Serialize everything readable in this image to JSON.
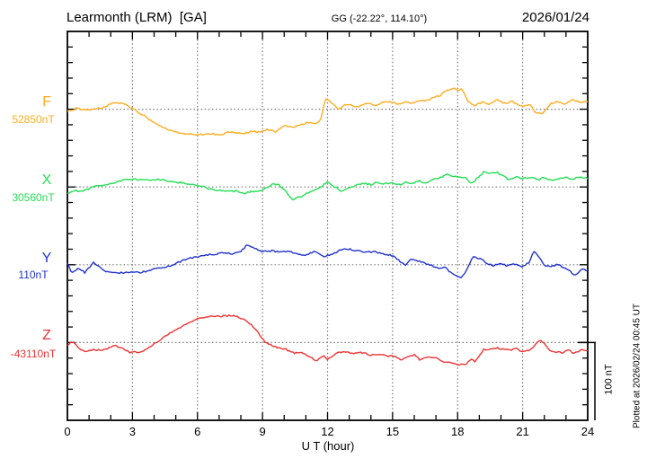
{
  "header": {
    "station_title": "Learmonth (LRM)  [GA]",
    "geographic_coords": "GG (-22.22°, 114.10°)",
    "date": "2026/01/24"
  },
  "axes": {
    "x_ticks": [
      "0",
      "3",
      "6",
      "9",
      "12",
      "15",
      "18",
      "21",
      "24"
    ],
    "x_label": "U T (hour)"
  },
  "scale_bar": {
    "label": "100 nT",
    "nT": 100
  },
  "watermark": "Plotted at 2026/02/24 00:45 UT",
  "colors": {
    "F": "#FFAD1F",
    "X": "#22DD55",
    "Y": "#2233CC",
    "Z": "#EE3333",
    "grid": "#777777",
    "axis": "#000000"
  },
  "chart_data": {
    "type": "line",
    "title": "Learmonth (LRM) [GA] magnetogram",
    "xlabel": "U T (hour)",
    "x_range": [
      0,
      24
    ],
    "x_major_tick_hours": 3,
    "x_minor_tick_hours": 1,
    "grid": "dotted at 3-hour intervals and at trace baselines",
    "trace_offset_per_division_nT": 100,
    "legend_position": "left labels per trace",
    "series": [
      {
        "name": "F",
        "baseline_label": "52850nT",
        "baseline_nT": 52850,
        "color": "#FFAD1F",
        "points_hour_offsetnT": [
          [
            0,
            -3
          ],
          [
            0.4,
            1
          ],
          [
            0.8,
            -1
          ],
          [
            1.2,
            0
          ],
          [
            1.6,
            2
          ],
          [
            2,
            7
          ],
          [
            2.3,
            9
          ],
          [
            2.7,
            6
          ],
          [
            3,
            1
          ],
          [
            3.4,
            -6
          ],
          [
            3.8,
            -14
          ],
          [
            4.3,
            -22
          ],
          [
            4.8,
            -28
          ],
          [
            5.3,
            -31
          ],
          [
            5.8,
            -32
          ],
          [
            6.3,
            -33
          ],
          [
            6.7,
            -31
          ],
          [
            7,
            -34
          ],
          [
            7.4,
            -29
          ],
          [
            7.8,
            -30
          ],
          [
            8.2,
            -31
          ],
          [
            8.5,
            -28
          ],
          [
            8.9,
            -30
          ],
          [
            9.2,
            -26
          ],
          [
            9.6,
            -29
          ],
          [
            10,
            -21
          ],
          [
            10.4,
            -23
          ],
          [
            10.8,
            -20
          ],
          [
            11.1,
            -17
          ],
          [
            11.4,
            -19
          ],
          [
            11.7,
            -13
          ],
          [
            11.9,
            14
          ],
          [
            12.1,
            10
          ],
          [
            12.5,
            0
          ],
          [
            12.9,
            7
          ],
          [
            13.3,
            2
          ],
          [
            13.8,
            8
          ],
          [
            14.2,
            5
          ],
          [
            14.6,
            9
          ],
          [
            15,
            9
          ],
          [
            15.3,
            6
          ],
          [
            15.6,
            10
          ],
          [
            15.9,
            7
          ],
          [
            16.2,
            12
          ],
          [
            16.5,
            10
          ],
          [
            16.9,
            15
          ],
          [
            17.2,
            18
          ],
          [
            17.5,
            24
          ],
          [
            17.8,
            27
          ],
          [
            18,
            25
          ],
          [
            18.2,
            26
          ],
          [
            18.5,
            9
          ],
          [
            18.8,
            5
          ],
          [
            19.2,
            10
          ],
          [
            19.5,
            6
          ],
          [
            19.8,
            13
          ],
          [
            20.2,
            7
          ],
          [
            20.5,
            10
          ],
          [
            21,
            3
          ],
          [
            21.3,
            7
          ],
          [
            21.6,
            -4
          ],
          [
            21.9,
            -6
          ],
          [
            22.3,
            7
          ],
          [
            22.6,
            10
          ],
          [
            23,
            6
          ],
          [
            23.3,
            13
          ],
          [
            23.6,
            9
          ],
          [
            24,
            10
          ]
        ]
      },
      {
        "name": "X",
        "baseline_label": "30560nT",
        "baseline_nT": 30560,
        "color": "#22DD55",
        "points_hour_offsetnT": [
          [
            0,
            -8
          ],
          [
            0.3,
            -4
          ],
          [
            0.6,
            -6
          ],
          [
            1,
            -2
          ],
          [
            1.4,
            2
          ],
          [
            1.8,
            3
          ],
          [
            2.2,
            6
          ],
          [
            2.6,
            9
          ],
          [
            3,
            10
          ],
          [
            3.4,
            10
          ],
          [
            3.8,
            9
          ],
          [
            4.2,
            10
          ],
          [
            4.6,
            8
          ],
          [
            5,
            6
          ],
          [
            5.4,
            5
          ],
          [
            5.8,
            3
          ],
          [
            6.2,
            1
          ],
          [
            6.6,
            -3
          ],
          [
            7,
            -4
          ],
          [
            7.4,
            -6
          ],
          [
            7.8,
            -5
          ],
          [
            8.2,
            -8
          ],
          [
            8.6,
            -5
          ],
          [
            9,
            -4
          ],
          [
            9.4,
            3
          ],
          [
            9.7,
            4
          ],
          [
            10,
            -4
          ],
          [
            10.4,
            -16
          ],
          [
            10.8,
            -12
          ],
          [
            11.2,
            -6
          ],
          [
            11.6,
            -1
          ],
          [
            12,
            6
          ],
          [
            12.3,
            1
          ],
          [
            12.6,
            -5
          ],
          [
            13,
            -1
          ],
          [
            13.4,
            3
          ],
          [
            13.7,
            5
          ],
          [
            14,
            3
          ],
          [
            14.3,
            6
          ],
          [
            14.6,
            4
          ],
          [
            15,
            5
          ],
          [
            15.3,
            3
          ],
          [
            15.6,
            6
          ],
          [
            15.9,
            4
          ],
          [
            16.2,
            8
          ],
          [
            16.5,
            5
          ],
          [
            16.9,
            10
          ],
          [
            17.2,
            12
          ],
          [
            17.5,
            17
          ],
          [
            17.8,
            14
          ],
          [
            18.1,
            13
          ],
          [
            18.4,
            11
          ],
          [
            18.6,
            4
          ],
          [
            18.9,
            11
          ],
          [
            19.2,
            19
          ],
          [
            19.5,
            17
          ],
          [
            19.8,
            19
          ],
          [
            20.1,
            14
          ],
          [
            20.4,
            9
          ],
          [
            20.7,
            13
          ],
          [
            21,
            11
          ],
          [
            21.4,
            13
          ],
          [
            21.7,
            9
          ],
          [
            22,
            12
          ],
          [
            22.4,
            8
          ],
          [
            22.7,
            11
          ],
          [
            23,
            13
          ],
          [
            23.3,
            10
          ],
          [
            23.6,
            12
          ],
          [
            24,
            11
          ]
        ]
      },
      {
        "name": "Y",
        "baseline_label": "110nT",
        "baseline_nT": 110,
        "color": "#2233CC",
        "points_hour_offsetnT": [
          [
            0,
            2
          ],
          [
            0.2,
            -11
          ],
          [
            0.5,
            -5
          ],
          [
            0.8,
            -10
          ],
          [
            1.2,
            3
          ],
          [
            1.5,
            -4
          ],
          [
            1.8,
            -9
          ],
          [
            2.2,
            -11
          ],
          [
            2.6,
            -10
          ],
          [
            3,
            -9
          ],
          [
            3.3,
            -10
          ],
          [
            3.7,
            -8
          ],
          [
            4,
            -6
          ],
          [
            4.4,
            -4
          ],
          [
            4.8,
            -1
          ],
          [
            5.2,
            4
          ],
          [
            5.6,
            8
          ],
          [
            6,
            10
          ],
          [
            6.4,
            13
          ],
          [
            6.8,
            13
          ],
          [
            7.2,
            16
          ],
          [
            7.6,
            14
          ],
          [
            8,
            17
          ],
          [
            8.3,
            26
          ],
          [
            8.6,
            21
          ],
          [
            9,
            17
          ],
          [
            9.4,
            18
          ],
          [
            9.8,
            16
          ],
          [
            10.2,
            17
          ],
          [
            10.6,
            14
          ],
          [
            11,
            12
          ],
          [
            11.4,
            17
          ],
          [
            11.8,
            11
          ],
          [
            12.2,
            13
          ],
          [
            12.6,
            19
          ],
          [
            13,
            20
          ],
          [
            13.4,
            18
          ],
          [
            13.8,
            16
          ],
          [
            14.2,
            17
          ],
          [
            14.6,
            13
          ],
          [
            15,
            12
          ],
          [
            15.3,
            5
          ],
          [
            15.6,
            -1
          ],
          [
            15.9,
            8
          ],
          [
            16.2,
            5
          ],
          [
            16.5,
            2
          ],
          [
            16.8,
            -1
          ],
          [
            17.1,
            -4
          ],
          [
            17.4,
            -3
          ],
          [
            17.7,
            -11
          ],
          [
            18,
            -15
          ],
          [
            18.2,
            -17
          ],
          [
            18.5,
            -1
          ],
          [
            18.7,
            11
          ],
          [
            19,
            8
          ],
          [
            19.3,
            3
          ],
          [
            19.6,
            -1
          ],
          [
            20,
            2
          ],
          [
            20.3,
            -2
          ],
          [
            20.6,
            1
          ],
          [
            21,
            -3
          ],
          [
            21.3,
            3
          ],
          [
            21.5,
            17
          ],
          [
            21.7,
            12
          ],
          [
            22,
            -1
          ],
          [
            22.3,
            -3
          ],
          [
            22.6,
            1
          ],
          [
            22.9,
            -4
          ],
          [
            23.2,
            -9
          ],
          [
            23.4,
            -15
          ],
          [
            23.7,
            -5
          ],
          [
            24,
            -8
          ]
        ]
      },
      {
        "name": "Z",
        "baseline_label": "-43110nT",
        "baseline_nT": -43110,
        "color": "#EE3333",
        "points_hour_offsetnT": [
          [
            0,
            -4
          ],
          [
            0.2,
            2
          ],
          [
            0.5,
            -6
          ],
          [
            0.8,
            -12
          ],
          [
            1.2,
            -9
          ],
          [
            1.5,
            -10
          ],
          [
            1.8,
            -8
          ],
          [
            2.2,
            -4
          ],
          [
            2.5,
            -7
          ],
          [
            2.9,
            -13
          ],
          [
            3.3,
            -12
          ],
          [
            3.6,
            -9
          ],
          [
            4,
            -2
          ],
          [
            4.4,
            6
          ],
          [
            4.8,
            13
          ],
          [
            5.2,
            19
          ],
          [
            5.6,
            25
          ],
          [
            6,
            30
          ],
          [
            6.4,
            32
          ],
          [
            6.8,
            34
          ],
          [
            7.2,
            34
          ],
          [
            7.6,
            35
          ],
          [
            7.8,
            34
          ],
          [
            8.2,
            29
          ],
          [
            8.6,
            20
          ],
          [
            9,
            5
          ],
          [
            9.2,
            -1
          ],
          [
            9.5,
            -5
          ],
          [
            9.8,
            -7
          ],
          [
            10.1,
            -9
          ],
          [
            10.5,
            -14
          ],
          [
            10.8,
            -12
          ],
          [
            11.1,
            -18
          ],
          [
            11.5,
            -23
          ],
          [
            11.8,
            -17
          ],
          [
            12,
            -22
          ],
          [
            12.4,
            -14
          ],
          [
            12.8,
            -12
          ],
          [
            13.2,
            -14
          ],
          [
            13.6,
            -13
          ],
          [
            14,
            -16
          ],
          [
            14.4,
            -15
          ],
          [
            14.8,
            -18
          ],
          [
            15.1,
            -17
          ],
          [
            15.4,
            -23
          ],
          [
            15.7,
            -18
          ],
          [
            16,
            -16
          ],
          [
            16.3,
            -23
          ],
          [
            16.6,
            -18
          ],
          [
            17,
            -20
          ],
          [
            17.4,
            -25
          ],
          [
            17.8,
            -27
          ],
          [
            18.1,
            -29
          ],
          [
            18.4,
            -27
          ],
          [
            18.6,
            -21
          ],
          [
            18.8,
            -25
          ],
          [
            19,
            -17
          ],
          [
            19.2,
            -9
          ],
          [
            19.5,
            -8
          ],
          [
            19.8,
            -7
          ],
          [
            20.1,
            -9
          ],
          [
            20.4,
            -10
          ],
          [
            20.7,
            -8
          ],
          [
            21,
            -12
          ],
          [
            21.3,
            -10
          ],
          [
            21.6,
            -2
          ],
          [
            21.8,
            2
          ],
          [
            22,
            0
          ],
          [
            22.2,
            -10
          ],
          [
            22.5,
            -12
          ],
          [
            22.8,
            -13
          ],
          [
            23.1,
            -10
          ],
          [
            23.4,
            -14
          ],
          [
            23.7,
            -9
          ],
          [
            24,
            -10
          ]
        ]
      }
    ]
  }
}
